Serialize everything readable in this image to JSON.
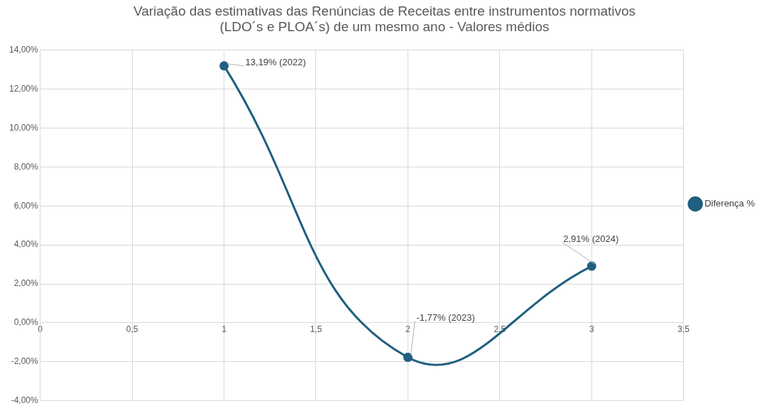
{
  "chart_data": {
    "type": "line",
    "title": "Variação das estimativas das Renúncias de Receitas entre instrumentos normativos\n(LDO´s e PLOA´s) de um mesmo ano - Valores médios",
    "x": [
      1,
      2,
      3
    ],
    "series": [
      {
        "name": "Diferença %",
        "color": "#1f5f7f",
        "values": [
          13.19,
          -1.77,
          2.91
        ],
        "value_labels": [
          "13,19% (2022)",
          "-1,77% (2023)",
          "2,91% (2024)"
        ]
      }
    ],
    "xlim": [
      0,
      3.5
    ],
    "xticks": [
      0,
      {
        "value": 0.5,
        "label": "0,5"
      },
      1,
      {
        "value": 1.5,
        "label": "1,5"
      },
      2,
      {
        "value": 2.5,
        "label": "2,5"
      },
      3,
      {
        "value": 3.5,
        "label": "3,5"
      }
    ],
    "ylim": [
      -4,
      14
    ],
    "yticks": [
      {
        "value": -4,
        "label": "-4,00%"
      },
      {
        "value": -2,
        "label": "-2,00%"
      },
      {
        "value": 0,
        "label": "0,00%"
      },
      {
        "value": 2,
        "label": "2,00%"
      },
      {
        "value": 4,
        "label": "4,00%"
      },
      {
        "value": 6,
        "label": "6,00%"
      },
      {
        "value": 8,
        "label": "8,00%"
      },
      {
        "value": 10,
        "label": "10,00%"
      },
      {
        "value": 12,
        "label": "12,00%"
      },
      {
        "value": 14,
        "label": "14,00%"
      }
    ],
    "grid": true,
    "legend": "right",
    "marker": "circle",
    "line_style": "solid"
  }
}
